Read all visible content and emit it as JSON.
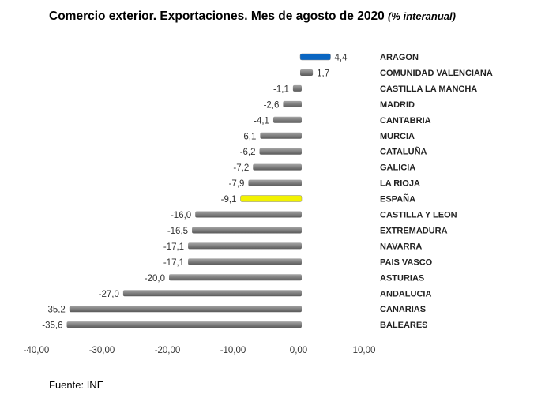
{
  "chart_data": {
    "type": "bar",
    "orientation": "horizontal",
    "title": "Comercio exterior. Exportaciones. Mes de agosto de 2020",
    "title_suffix": "(% interanual)",
    "source": "Fuente: INE",
    "categories": [
      "ARAGON",
      "COMUNIDAD VALENCIANA",
      "CASTILLA LA MANCHA",
      "MADRID",
      "CANTABRIA",
      "MURCIA",
      "CATALUÑA",
      "GALICIA",
      "LA RIOJA",
      "ESPAÑA",
      "CASTILLA Y LEON",
      "EXTREMADURA",
      "NAVARRA",
      "PAIS VASCO",
      "ASTURIAS",
      "ANDALUCIA",
      "CANARIAS",
      "BALEARES"
    ],
    "values": [
      4.4,
      1.7,
      -1.1,
      -2.6,
      -4.1,
      -6.1,
      -6.2,
      -7.2,
      -7.9,
      -9.1,
      -16.0,
      -16.5,
      -17.1,
      -17.1,
      -20.0,
      -27.0,
      -35.2,
      -35.6
    ],
    "data_labels": [
      "4,4",
      "1,7",
      "-1,1",
      "-2,6",
      "-4,1",
      "-6,1",
      "-6,2",
      "-7,2",
      "-7,9",
      "-9,1",
      "-16,0",
      "-16,5",
      "-17,1",
      "-17,1",
      "-20,0",
      "-27,0",
      "-35,2",
      "-35,6"
    ],
    "highlight": {
      "ARAGON": "#0a66c2",
      "ESPAÑA": "#f2f200"
    },
    "default_color": "#7f7f7f",
    "xlim": [
      -40,
      10
    ],
    "x_ticks": [
      -40,
      -30,
      -20,
      -10,
      0,
      10
    ],
    "x_tick_labels": [
      "-40,00",
      "-30,00",
      "-20,00",
      "-10,00",
      "0,00",
      "10,00"
    ],
    "grid": false,
    "legend": "none"
  }
}
